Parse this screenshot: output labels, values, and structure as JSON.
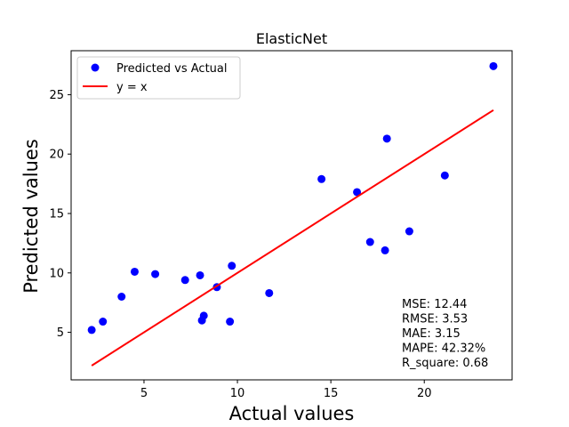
{
  "chart_data": {
    "type": "scatter",
    "title": "ElasticNet",
    "xlabel": "Actual values",
    "ylabel": "Predicted values",
    "xlim": [
      1.1,
      24.7
    ],
    "ylim": [
      1.0,
      28.7
    ],
    "xticks": [
      5,
      10,
      15,
      20
    ],
    "yticks": [
      5,
      10,
      15,
      20,
      25
    ],
    "series": [
      {
        "name": "Predicted vs Actual",
        "kind": "scatter",
        "color": "#0000ff",
        "points": [
          {
            "x": 2.2,
            "y": 5.2
          },
          {
            "x": 2.8,
            "y": 5.9
          },
          {
            "x": 3.8,
            "y": 8.0
          },
          {
            "x": 4.5,
            "y": 10.1
          },
          {
            "x": 5.6,
            "y": 9.9
          },
          {
            "x": 7.2,
            "y": 9.4
          },
          {
            "x": 8.0,
            "y": 9.8
          },
          {
            "x": 8.1,
            "y": 6.0
          },
          {
            "x": 8.2,
            "y": 6.4
          },
          {
            "x": 8.9,
            "y": 8.8
          },
          {
            "x": 9.6,
            "y": 5.9
          },
          {
            "x": 9.7,
            "y": 10.6
          },
          {
            "x": 11.7,
            "y": 8.3
          },
          {
            "x": 14.5,
            "y": 17.9
          },
          {
            "x": 16.4,
            "y": 16.8
          },
          {
            "x": 17.1,
            "y": 12.6
          },
          {
            "x": 17.9,
            "y": 11.9
          },
          {
            "x": 18.0,
            "y": 21.3
          },
          {
            "x": 19.2,
            "y": 13.5
          },
          {
            "x": 21.1,
            "y": 18.2
          },
          {
            "x": 23.7,
            "y": 27.4
          }
        ]
      },
      {
        "name": "y = x",
        "kind": "line",
        "color": "#ff0000",
        "points": [
          {
            "x": 2.2,
            "y": 2.2
          },
          {
            "x": 23.7,
            "y": 23.7
          }
        ]
      }
    ],
    "legend_position": "top-left",
    "grid": false,
    "annotations": [
      "MSE: 12.44",
      "RMSE: 3.53",
      "MAE: 3.15",
      "MAPE: 42.32%",
      "R_square: 0.68"
    ]
  }
}
